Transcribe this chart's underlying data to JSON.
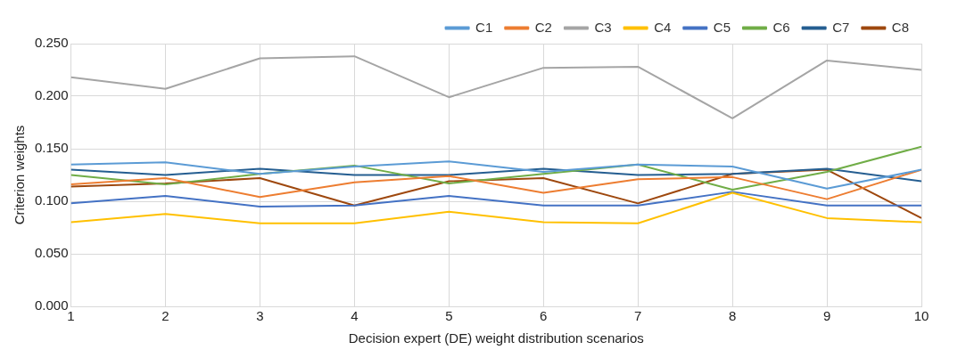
{
  "chart_data": {
    "type": "line",
    "xlabel": "Decision expert (DE) weight distribution scenarios",
    "ylabel": "Criterion weights",
    "x": [
      1,
      2,
      3,
      4,
      5,
      6,
      7,
      8,
      9,
      10
    ],
    "xlim": [
      1,
      10
    ],
    "xticks": [
      1,
      2,
      3,
      4,
      5,
      6,
      7,
      8,
      9,
      10
    ],
    "ylim": [
      0,
      0.25
    ],
    "yticks": [
      {
        "value": 0,
        "label": "0.000"
      },
      {
        "value": 0.05,
        "label": "0.050"
      },
      {
        "value": 0.1,
        "label": "0.100"
      },
      {
        "value": 0.15,
        "label": "0.150"
      },
      {
        "value": 0.2,
        "label": "0.200"
      },
      {
        "value": 0.25,
        "label": "0.250"
      }
    ],
    "grid": true,
    "legend": "top right",
    "marker": "none",
    "series": [
      {
        "name": "C1",
        "color": "#5b9bd5",
        "values": [
          0.135,
          0.137,
          0.126,
          0.133,
          0.138,
          0.128,
          0.135,
          0.133,
          0.112,
          0.13
        ]
      },
      {
        "name": "C2",
        "color": "#ed7d31",
        "values": [
          0.116,
          0.122,
          0.104,
          0.118,
          0.124,
          0.108,
          0.121,
          0.123,
          0.102,
          0.13
        ]
      },
      {
        "name": "C3",
        "color": "#a5a5a5",
        "values": [
          0.218,
          0.207,
          0.236,
          0.238,
          0.199,
          0.227,
          0.228,
          0.179,
          0.234,
          0.225
        ]
      },
      {
        "name": "C4",
        "color": "#ffc000",
        "values": [
          0.08,
          0.088,
          0.079,
          0.079,
          0.09,
          0.08,
          0.079,
          0.108,
          0.084,
          0.08
        ]
      },
      {
        "name": "C5",
        "color": "#4472c4",
        "values": [
          0.098,
          0.105,
          0.095,
          0.096,
          0.105,
          0.096,
          0.096,
          0.109,
          0.096,
          0.096
        ]
      },
      {
        "name": "C6",
        "color": "#70ad47",
        "values": [
          0.125,
          0.116,
          0.126,
          0.134,
          0.117,
          0.126,
          0.135,
          0.111,
          0.128,
          0.152
        ]
      },
      {
        "name": "C7",
        "color": "#255e91",
        "values": [
          0.13,
          0.125,
          0.131,
          0.125,
          0.125,
          0.131,
          0.125,
          0.126,
          0.131,
          0.119
        ]
      },
      {
        "name": "C8",
        "color": "#9e480e",
        "values": [
          0.114,
          0.117,
          0.122,
          0.096,
          0.119,
          0.122,
          0.098,
          0.126,
          0.13,
          0.084
        ]
      }
    ]
  }
}
